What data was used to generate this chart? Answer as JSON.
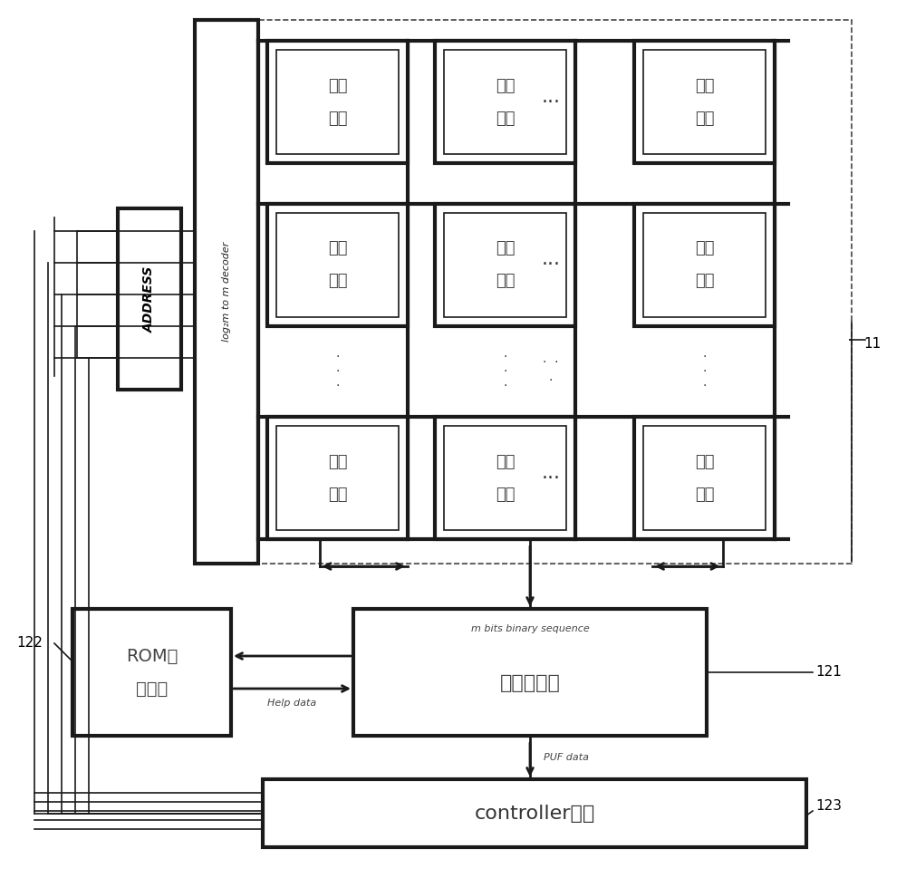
{
  "bg_color": "#ffffff",
  "line_color": "#1a1a1a",
  "storage_text1": "存储",
  "storage_text2": "单元",
  "decoder_text": "log₂m to m decoder",
  "address_text": "ADDRESS",
  "rom_text1": "ROM存",
  "rom_text2": "储模块",
  "ecc_top_label": "m bits binary sequence",
  "ecc_main_text": "纠错码模块",
  "controller_text": "controller模块",
  "puf_data_label": "PUF data",
  "help_data_label": "Help data",
  "label_11": "11",
  "label_121": "121",
  "label_122": "122",
  "label_123": "123"
}
